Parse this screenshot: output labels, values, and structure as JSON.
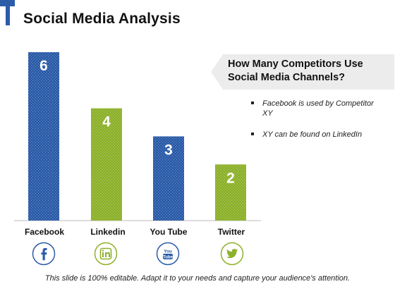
{
  "header": {
    "title": "Social Media Analysis"
  },
  "callout": {
    "text": "How Many Competitors Use Social Media Channels?"
  },
  "bullets": [
    "Facebook is used by Competitor XY",
    "XY can be found on LinkedIn"
  ],
  "footer": {
    "text": "This slide is 100% editable. Adapt it to your needs and capture your audience's attention."
  },
  "icons": [
    "facebook-icon",
    "linkedin-icon",
    "youtube-icon",
    "twitter-icon"
  ],
  "colors": {
    "accent_blue": "#2b5ca8",
    "accent_green": "#8db12b",
    "icon_blue": "#2b5ca8",
    "icon_green": "#8db12b"
  },
  "chart_data": {
    "type": "bar",
    "categories": [
      "Facebook",
      "Linkedin",
      "You Tube",
      "Twitter"
    ],
    "values": [
      6,
      4,
      3,
      2
    ],
    "data_labels": [
      "6",
      "4",
      "3",
      "2"
    ],
    "bar_colors": [
      "#2b5ca8",
      "#8db12b",
      "#2b5ca8",
      "#8db12b"
    ],
    "ylim": [
      0,
      6
    ],
    "grid": false,
    "title": "",
    "xlabel": "",
    "ylabel": ""
  }
}
